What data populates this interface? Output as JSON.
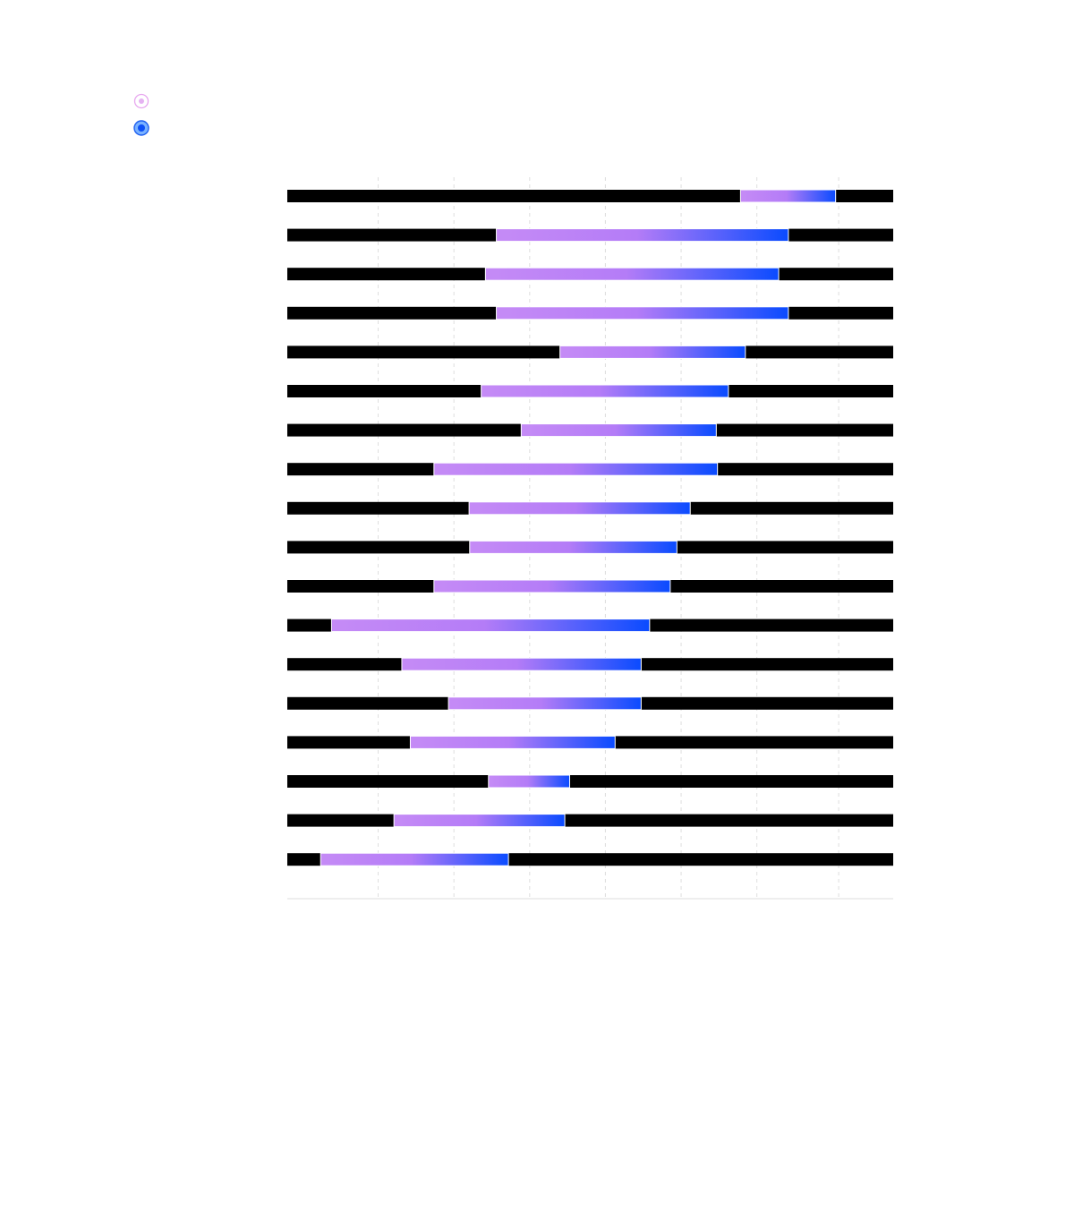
{
  "legend": {
    "items": [
      {
        "marker": "pink-ring-dot",
        "color": "#d98ee8"
      },
      {
        "marker": "blue-ring-dot",
        "color": "#1f5cf0"
      }
    ]
  },
  "colors": {
    "bar_start": "#c58bf6",
    "bar_mid": "#b47cf7",
    "bar_end": "#0a4bff",
    "base_bar": "#000000",
    "gridline": "#dedede",
    "axis": "#dcdcdc"
  },
  "chart_data": {
    "type": "bar",
    "orientation": "horizontal",
    "style": "dumbbell-range",
    "grid": true,
    "xlim": [
      0,
      100
    ],
    "rows": [
      {
        "start": 74.8,
        "end": 90.5
      },
      {
        "start": 34.5,
        "end": 82.7
      },
      {
        "start": 32.7,
        "end": 81.1
      },
      {
        "start": 34.5,
        "end": 82.7
      },
      {
        "start": 45.0,
        "end": 75.6
      },
      {
        "start": 32.0,
        "end": 72.8
      },
      {
        "start": 38.6,
        "end": 70.8
      },
      {
        "start": 24.2,
        "end": 71.0
      },
      {
        "start": 30.0,
        "end": 66.5
      },
      {
        "start": 30.1,
        "end": 64.3
      },
      {
        "start": 24.2,
        "end": 63.2
      },
      {
        "start": 7.3,
        "end": 59.8
      },
      {
        "start": 18.9,
        "end": 58.4
      },
      {
        "start": 26.6,
        "end": 58.4
      },
      {
        "start": 20.3,
        "end": 54.1
      },
      {
        "start": 33.2,
        "end": 46.6
      },
      {
        "start": 17.6,
        "end": 45.8
      },
      {
        "start": 5.5,
        "end": 36.5
      }
    ]
  }
}
